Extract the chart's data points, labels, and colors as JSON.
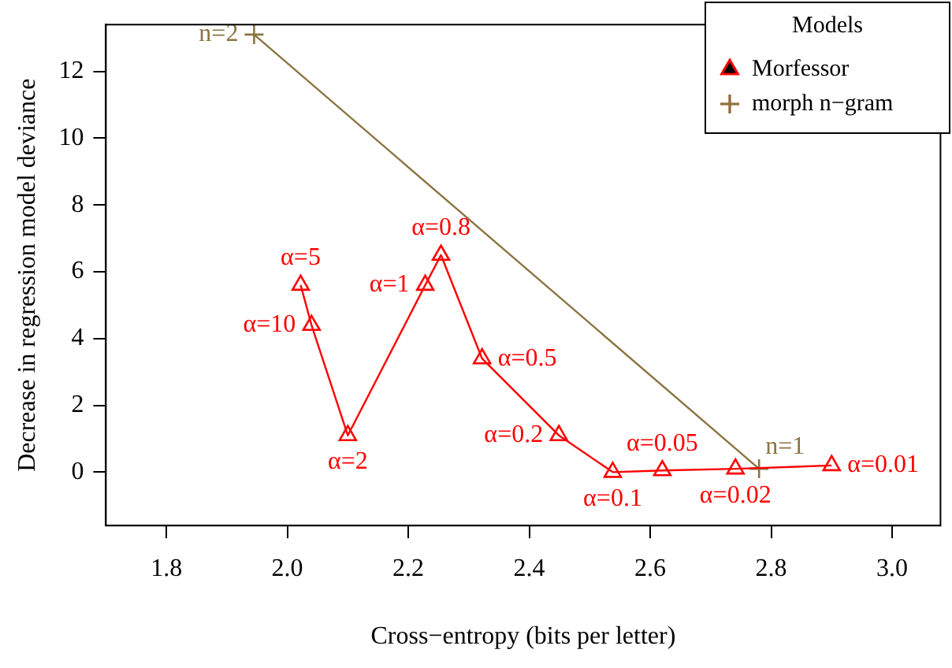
{
  "chart_data": {
    "type": "line",
    "xlabel": "Cross−entropy (bits per letter)",
    "ylabel": "Decrease in regression model deviance",
    "legend_title": "Models",
    "legend": "top right",
    "grid": false,
    "xlim": [
      1.7,
      3.08
    ],
    "xticks": [
      {
        "value": 1.8,
        "label": "1.8"
      },
      {
        "value": 2.0,
        "label": "2.0"
      },
      {
        "value": 2.2,
        "label": "2.2"
      },
      {
        "value": 2.4,
        "label": "2.4"
      },
      {
        "value": 2.6,
        "label": "2.6"
      },
      {
        "value": 2.8,
        "label": "2.8"
      },
      {
        "value": 3.0,
        "label": "3.0"
      }
    ],
    "ylim": [
      -1.6,
      13.4
    ],
    "yticks": [
      0,
      2,
      4,
      6,
      8,
      10,
      12
    ],
    "series": [
      {
        "name": "Morfessor",
        "color": "#ff0000",
        "marker": "triangle",
        "x": [
          2.022,
          2.04,
          2.1,
          2.228,
          2.254,
          2.322,
          2.449,
          2.538,
          2.62,
          2.741,
          2.9
        ],
        "values": [
          5.6,
          4.4,
          1.1,
          5.6,
          6.5,
          3.4,
          1.1,
          0.0,
          0.05,
          0.1,
          0.2
        ]
      },
      {
        "name": "morph n−gram",
        "color": "#8b7340",
        "marker": "cross",
        "x": [
          1.945,
          2.78
        ],
        "values": [
          13.1,
          0.1
        ]
      }
    ],
    "annotations": [
      {
        "text": "α=5",
        "x": 2.022,
        "y": 5.6
      },
      {
        "text": "α=10",
        "x": 2.04,
        "y": 4.4
      },
      {
        "text": "α=2",
        "x": 2.1,
        "y": 1.1
      },
      {
        "text": "α=1",
        "x": 2.228,
        "y": 5.6
      },
      {
        "text": "α=0.8",
        "x": 2.254,
        "y": 6.5
      },
      {
        "text": "α=0.5",
        "x": 2.322,
        "y": 3.4
      },
      {
        "text": "α=0.2",
        "x": 2.449,
        "y": 1.1
      },
      {
        "text": "α=0.1",
        "x": 2.538,
        "y": 0.0
      },
      {
        "text": "α=0.05",
        "x": 2.62,
        "y": 0.05
      },
      {
        "text": "α=0.02",
        "x": 2.741,
        "y": 0.1
      },
      {
        "text": "α=0.01",
        "x": 2.9,
        "y": 0.2
      },
      {
        "text": "n=2",
        "x": 1.945,
        "y": 13.1
      },
      {
        "text": "n=1",
        "x": 2.78,
        "y": 0.1
      }
    ]
  }
}
